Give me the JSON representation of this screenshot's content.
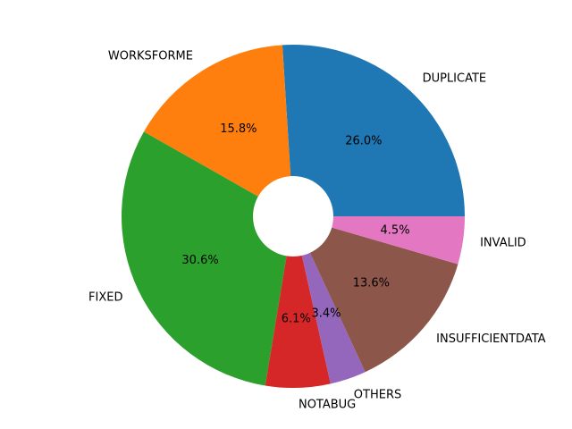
{
  "chart_data": {
    "type": "pie",
    "title": "",
    "labels": [
      "DUPLICATE",
      "WORKSFORME",
      "FIXED",
      "NOTABUG",
      "OTHERS",
      "INSUFFICIENTDATA",
      "INVALID"
    ],
    "values": [
      26.0,
      15.8,
      30.6,
      6.1,
      3.4,
      13.6,
      4.5
    ],
    "percent_labels": [
      "26.0%",
      "15.8%",
      "30.6%",
      "6.1%",
      "3.4%",
      "13.6%",
      "4.5%"
    ],
    "colors": [
      "#1f77b4",
      "#ff7f0e",
      "#2ca02c",
      "#d62728",
      "#9467bd",
      "#8c564b",
      "#e377c2"
    ],
    "start_angle": 0,
    "counterclockwise": true,
    "donut_hole": true
  }
}
